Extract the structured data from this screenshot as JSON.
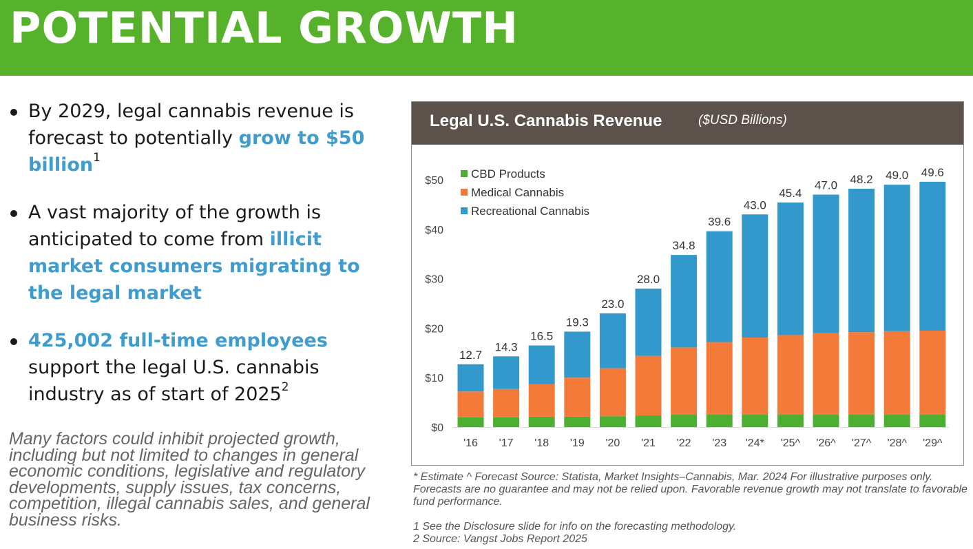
{
  "header": {
    "title": "POTENTIAL GROWTH"
  },
  "bullets": [
    {
      "pre": "By 2029, legal cannabis revenue is forecast to potentially ",
      "highlight": "grow to $50 billion",
      "post": "",
      "sup": "1"
    },
    {
      "pre": "A vast majority of the growth is anticipated to come from ",
      "highlight": "illicit market consumers migrating to the legal market",
      "post": "",
      "sup": ""
    },
    {
      "pre": "",
      "highlight": "425,002 full-time employees",
      "post": " support the legal U.S. cannabis industry as of start of  2025",
      "sup": "2"
    }
  ],
  "disclaimer": "Many factors could inhibit projected growth, including but not limited to changes in general economic conditions, legislative and regulatory developments, supply issues, tax concerns, competition, illegal cannabis sales, and general business risks.",
  "notes": {
    "line1": "* Estimate   ^ Forecast   Source: Statista, Market Insights–Cannabis, Mar. 2024 For illustrative purposes only. Forecasts are no guarantee and may not be relied upon. Favorable revenue growth may not translate to favorable fund performance.",
    "line2": "1 See the Disclosure slide for info on the forecasting methodology.",
    "line3": "2 Source: Vangst Jobs Report 2025"
  },
  "chart_data": {
    "type": "bar",
    "stacked": true,
    "title": "Legal U.S. Cannabis Revenue",
    "subtitle": "($USD Billions)",
    "xlabel": "",
    "ylabel": "",
    "categories": [
      "'16",
      "'17",
      "'18",
      "'19",
      "'20",
      "'21",
      "'22",
      "'23",
      "'24*",
      "'25^",
      "'26^",
      "'27^",
      "'28^",
      "'29^"
    ],
    "series": [
      {
        "name": "CBD Products",
        "color": "#4caf32",
        "values": [
          2.0,
          2.0,
          2.1,
          2.1,
          2.2,
          2.3,
          2.5,
          2.5,
          2.5,
          2.5,
          2.5,
          2.5,
          2.5,
          2.5
        ]
      },
      {
        "name": "Medical Cannabis",
        "color": "#f47a3a",
        "values": [
          5.2,
          5.7,
          6.6,
          7.9,
          9.7,
          12.1,
          13.6,
          14.7,
          15.6,
          16.1,
          16.5,
          16.7,
          16.9,
          17.0
        ]
      },
      {
        "name": "Recreational Cannabis",
        "color": "#3399cc",
        "values": [
          5.5,
          6.6,
          7.8,
          9.3,
          11.1,
          13.6,
          18.7,
          22.4,
          24.9,
          26.8,
          28.0,
          29.0,
          29.6,
          30.1
        ]
      }
    ],
    "totals": [
      12.7,
      14.3,
      16.5,
      19.3,
      23.0,
      28.0,
      34.8,
      39.6,
      43.0,
      45.4,
      47.0,
      48.2,
      49.0,
      49.6
    ],
    "total_labels": [
      "12.7",
      "14.3",
      "16.5",
      "19.3",
      "23.0",
      "28.0",
      "34.8",
      "39.6",
      "43.0",
      "45.4",
      "47.0",
      "48.2",
      "49.0",
      "49.6"
    ],
    "yticks": [
      {
        "value": 0,
        "label": "$0"
      },
      {
        "value": 10,
        "label": "$10"
      },
      {
        "value": 20,
        "label": "$20"
      },
      {
        "value": 30,
        "label": "$30"
      },
      {
        "value": 40,
        "label": "$40"
      },
      {
        "value": 50,
        "label": "$50"
      }
    ],
    "ylim": [
      0,
      50
    ],
    "grid": false,
    "legend": "top-left"
  }
}
